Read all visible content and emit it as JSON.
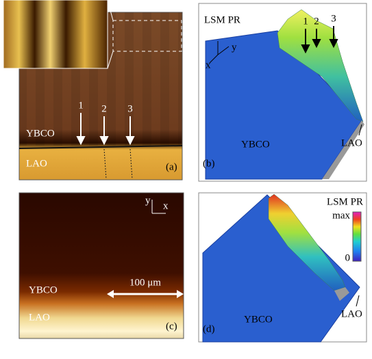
{
  "panel_a": {
    "markers": [
      "1",
      "2",
      "3"
    ],
    "top_layer": "YBCO",
    "bottom_layer": "LAO",
    "label": "(a)"
  },
  "panel_b": {
    "axis_title": "LSM PR",
    "axes": [
      "x",
      "y"
    ],
    "markers": [
      "1",
      "2",
      "3"
    ],
    "left_label": "YBCO",
    "right_label": "LAO",
    "label": "(b)"
  },
  "panel_c": {
    "axes": [
      "y",
      "x"
    ],
    "top_layer": "YBCO",
    "scale_bar": "100 μm",
    "bottom_layer": "LAO",
    "label": "(c)"
  },
  "panel_d": {
    "colorbar_title": "LSM PR",
    "colorbar_max": "max",
    "colorbar_min": "0",
    "left_label": "YBCO",
    "right_label": "LAO",
    "label": "(d)"
  }
}
